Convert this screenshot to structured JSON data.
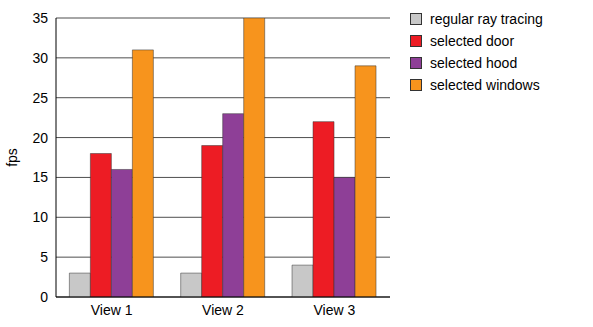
{
  "chart_data": {
    "type": "bar",
    "categories": [
      "View 1",
      "View 2",
      "View 3"
    ],
    "y_label": "fps",
    "series": [
      {
        "name": "regular ray tracing",
        "color": "#c8c8c8",
        "values": [
          3,
          3,
          4
        ]
      },
      {
        "name": "selected door",
        "color": "#ed1c24",
        "values": [
          18,
          19,
          22
        ]
      },
      {
        "name": "selected hood",
        "color": "#8e3f97",
        "values": [
          16,
          23,
          15
        ]
      },
      {
        "name": "selected windows",
        "color": "#f7941d",
        "values": [
          31,
          35,
          29
        ]
      }
    ],
    "ylim": [
      0,
      35
    ],
    "yticks": [
      0,
      5,
      10,
      15,
      20,
      25,
      30,
      35
    ],
    "grid": true,
    "legend": "upper right"
  }
}
